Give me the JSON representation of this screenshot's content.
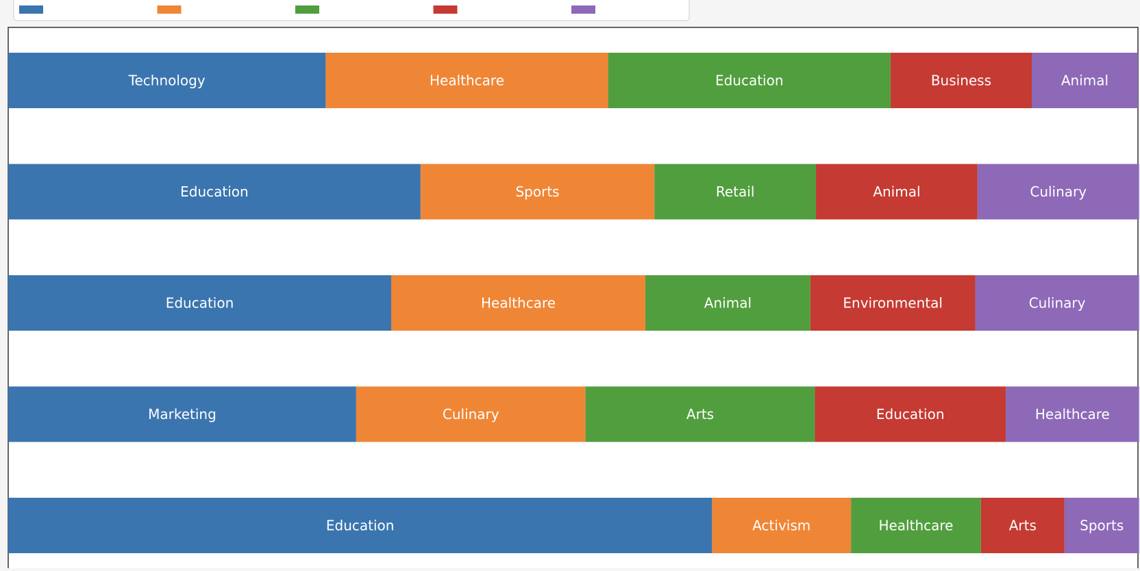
{
  "chart_data": {
    "type": "bar",
    "orientation": "horizontal",
    "stacked": true,
    "normalized": true,
    "xlim": [
      0,
      1
    ],
    "grid": false,
    "legend_placement": "top-left",
    "colors": [
      "#3b75af",
      "#ef8636",
      "#519e3e",
      "#c53a32",
      "#8d69b8"
    ],
    "series": [
      {
        "values": [
          0.281,
          0.365,
          0.339,
          0.308,
          0.623
        ],
        "labels": [
          "Technology",
          "Education",
          "Education",
          "Marketing",
          "Education"
        ]
      },
      {
        "values": [
          0.25,
          0.207,
          0.225,
          0.203,
          0.123
        ],
        "labels": [
          "Healthcare",
          "Sports",
          "Healthcare",
          "Culinary",
          "Activism"
        ]
      },
      {
        "values": [
          0.25,
          0.143,
          0.146,
          0.203,
          0.115
        ],
        "labels": [
          "Education",
          "Retail",
          "Animal",
          "Arts",
          "Healthcare"
        ]
      },
      {
        "values": [
          0.125,
          0.143,
          0.146,
          0.169,
          0.074
        ],
        "labels": [
          "Business",
          "Animal",
          "Environmental",
          "Education",
          "Arts"
        ]
      },
      {
        "values": [
          0.094,
          0.143,
          0.145,
          0.118,
          0.066
        ],
        "labels": [
          "Animal",
          "Culinary",
          "Culinary",
          "Healthcare",
          "Sports"
        ]
      }
    ]
  }
}
